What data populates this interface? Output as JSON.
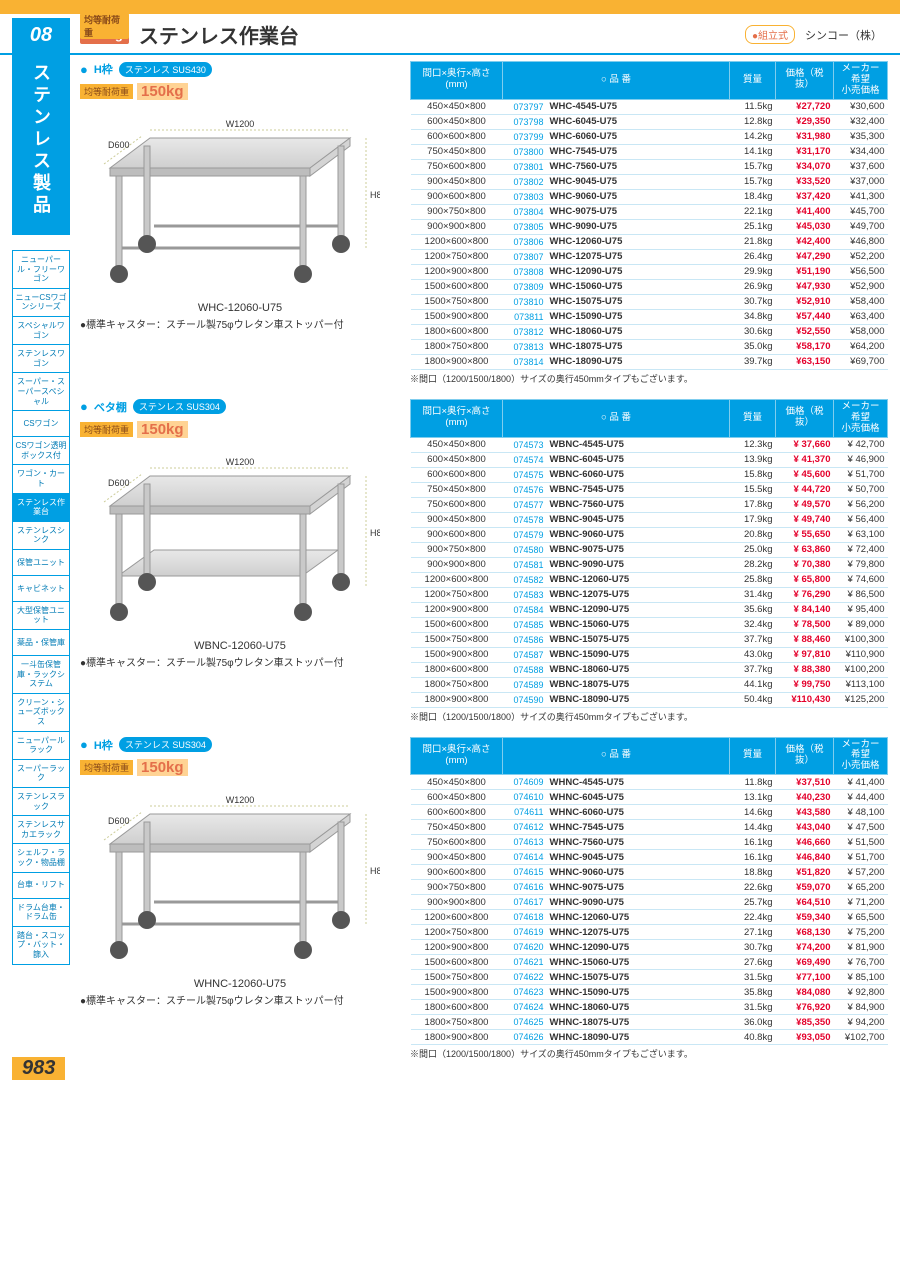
{
  "header": {
    "load_label": "均等耐荷重",
    "load_value": "150kg",
    "title": "ステンレス作業台",
    "assembly_badge": "●組立式",
    "maker": "シンコー（株）"
  },
  "chapter": {
    "num": "08",
    "label": "ステンレス製品"
  },
  "sidebar_items": [
    "ニューパール・フリーワゴン",
    "ニューCSワゴンシリーズ",
    "スペシャルワゴン",
    "ステンレスワゴン",
    "スーパー・スーパースペシャル",
    "CSワゴン",
    "CSワゴン透明ボックス付",
    "ワゴン・カート",
    "ステンレス作業台",
    "ステンレスシンク",
    "保管ユニット",
    "キャビネット",
    "大型保管ユニット",
    "薬品・保管庫",
    "一斗缶保管庫・ラックシステム",
    "クリーン・シューズボックス",
    "ニューパールラック",
    "スーパーラック",
    "ステンレスラック",
    "ステンレスサカエラック",
    "シェルフ・ラック・物品棚",
    "台車・リフト",
    "ドラム台車・ドラム缶",
    "踏台・スコップ・バット・篩入"
  ],
  "sidebar_active_index": 8,
  "table_headers": {
    "dim": "間口×奥行×高さ\n(mm)",
    "model": "○ 品 番",
    "mass": "質量",
    "price": "価格（税抜）",
    "msrp": "メーカー\n希望\n小売価格"
  },
  "caster_note": "●標準キャスター：スチール製75φウレタン車ストッパー付",
  "table_footnote": "※間口（1200/1500/1800）サイズの奥行450mmタイプもございます。",
  "dim_labels": {
    "w": "W1200",
    "d": "D600",
    "h": "H800"
  },
  "sections": [
    {
      "name": "H枠",
      "material": "ステンレス SUS430",
      "load": "150kg",
      "caption": "WHC-12060-U75",
      "shelf": false,
      "rows": [
        {
          "dim": "450×450×800",
          "code": "073797",
          "model": "WHC-4545-U75",
          "mass": "11.5kg",
          "price": "¥27,720",
          "msrp": "¥30,600"
        },
        {
          "dim": "600×450×800",
          "code": "073798",
          "model": "WHC-6045-U75",
          "mass": "12.8kg",
          "price": "¥29,350",
          "msrp": "¥32,400"
        },
        {
          "dim": "600×600×800",
          "code": "073799",
          "model": "WHC-6060-U75",
          "mass": "14.2kg",
          "price": "¥31,980",
          "msrp": "¥35,300"
        },
        {
          "dim": "750×450×800",
          "code": "073800",
          "model": "WHC-7545-U75",
          "mass": "14.1kg",
          "price": "¥31,170",
          "msrp": "¥34,400"
        },
        {
          "dim": "750×600×800",
          "code": "073801",
          "model": "WHC-7560-U75",
          "mass": "15.7kg",
          "price": "¥34,070",
          "msrp": "¥37,600"
        },
        {
          "dim": "900×450×800",
          "code": "073802",
          "model": "WHC-9045-U75",
          "mass": "15.7kg",
          "price": "¥33,520",
          "msrp": "¥37,000"
        },
        {
          "dim": "900×600×800",
          "code": "073803",
          "model": "WHC-9060-U75",
          "mass": "18.4kg",
          "price": "¥37,420",
          "msrp": "¥41,300"
        },
        {
          "dim": "900×750×800",
          "code": "073804",
          "model": "WHC-9075-U75",
          "mass": "22.1kg",
          "price": "¥41,400",
          "msrp": "¥45,700"
        },
        {
          "dim": "900×900×800",
          "code": "073805",
          "model": "WHC-9090-U75",
          "mass": "25.1kg",
          "price": "¥45,030",
          "msrp": "¥49,700"
        },
        {
          "dim": "1200×600×800",
          "code": "073806",
          "model": "WHC-12060-U75",
          "mass": "21.8kg",
          "price": "¥42,400",
          "msrp": "¥46,800"
        },
        {
          "dim": "1200×750×800",
          "code": "073807",
          "model": "WHC-12075-U75",
          "mass": "26.4kg",
          "price": "¥47,290",
          "msrp": "¥52,200"
        },
        {
          "dim": "1200×900×800",
          "code": "073808",
          "model": "WHC-12090-U75",
          "mass": "29.9kg",
          "price": "¥51,190",
          "msrp": "¥56,500"
        },
        {
          "dim": "1500×600×800",
          "code": "073809",
          "model": "WHC-15060-U75",
          "mass": "26.9kg",
          "price": "¥47,930",
          "msrp": "¥52,900"
        },
        {
          "dim": "1500×750×800",
          "code": "073810",
          "model": "WHC-15075-U75",
          "mass": "30.7kg",
          "price": "¥52,910",
          "msrp": "¥58,400"
        },
        {
          "dim": "1500×900×800",
          "code": "073811",
          "model": "WHC-15090-U75",
          "mass": "34.8kg",
          "price": "¥57,440",
          "msrp": "¥63,400"
        },
        {
          "dim": "1800×600×800",
          "code": "073812",
          "model": "WHC-18060-U75",
          "mass": "30.6kg",
          "price": "¥52,550",
          "msrp": "¥58,000"
        },
        {
          "dim": "1800×750×800",
          "code": "073813",
          "model": "WHC-18075-U75",
          "mass": "35.0kg",
          "price": "¥58,170",
          "msrp": "¥64,200"
        },
        {
          "dim": "1800×900×800",
          "code": "073814",
          "model": "WHC-18090-U75",
          "mass": "39.7kg",
          "price": "¥63,150",
          "msrp": "¥69,700"
        }
      ]
    },
    {
      "name": "ベタ棚",
      "material": "ステンレス SUS304",
      "load": "150kg",
      "caption": "WBNC-12060-U75",
      "shelf": true,
      "rows": [
        {
          "dim": "450×450×800",
          "code": "074573",
          "model": "WBNC-4545-U75",
          "mass": "12.3kg",
          "price": "¥ 37,660",
          "msrp": "¥ 42,700"
        },
        {
          "dim": "600×450×800",
          "code": "074574",
          "model": "WBNC-6045-U75",
          "mass": "13.9kg",
          "price": "¥ 41,370",
          "msrp": "¥ 46,900"
        },
        {
          "dim": "600×600×800",
          "code": "074575",
          "model": "WBNC-6060-U75",
          "mass": "15.8kg",
          "price": "¥ 45,600",
          "msrp": "¥ 51,700"
        },
        {
          "dim": "750×450×800",
          "code": "074576",
          "model": "WBNC-7545-U75",
          "mass": "15.5kg",
          "price": "¥ 44,720",
          "msrp": "¥ 50,700"
        },
        {
          "dim": "750×600×800",
          "code": "074577",
          "model": "WBNC-7560-U75",
          "mass": "17.8kg",
          "price": "¥ 49,570",
          "msrp": "¥ 56,200"
        },
        {
          "dim": "900×450×800",
          "code": "074578",
          "model": "WBNC-9045-U75",
          "mass": "17.9kg",
          "price": "¥ 49,740",
          "msrp": "¥ 56,400"
        },
        {
          "dim": "900×600×800",
          "code": "074579",
          "model": "WBNC-9060-U75",
          "mass": "20.8kg",
          "price": "¥ 55,650",
          "msrp": "¥ 63,100"
        },
        {
          "dim": "900×750×800",
          "code": "074580",
          "model": "WBNC-9075-U75",
          "mass": "25.0kg",
          "price": "¥ 63,860",
          "msrp": "¥ 72,400"
        },
        {
          "dim": "900×900×800",
          "code": "074581",
          "model": "WBNC-9090-U75",
          "mass": "28.2kg",
          "price": "¥ 70,380",
          "msrp": "¥ 79,800"
        },
        {
          "dim": "1200×600×800",
          "code": "074582",
          "model": "WBNC-12060-U75",
          "mass": "25.8kg",
          "price": "¥ 65,800",
          "msrp": "¥ 74,600"
        },
        {
          "dim": "1200×750×800",
          "code": "074583",
          "model": "WBNC-12075-U75",
          "mass": "31.4kg",
          "price": "¥ 76,290",
          "msrp": "¥ 86,500"
        },
        {
          "dim": "1200×900×800",
          "code": "074584",
          "model": "WBNC-12090-U75",
          "mass": "35.6kg",
          "price": "¥ 84,140",
          "msrp": "¥ 95,400"
        },
        {
          "dim": "1500×600×800",
          "code": "074585",
          "model": "WBNC-15060-U75",
          "mass": "32.4kg",
          "price": "¥ 78,500",
          "msrp": "¥ 89,000"
        },
        {
          "dim": "1500×750×800",
          "code": "074586",
          "model": "WBNC-15075-U75",
          "mass": "37.7kg",
          "price": "¥ 88,460",
          "msrp": "¥100,300"
        },
        {
          "dim": "1500×900×800",
          "code": "074587",
          "model": "WBNC-15090-U75",
          "mass": "43.0kg",
          "price": "¥ 97,810",
          "msrp": "¥110,900"
        },
        {
          "dim": "1800×600×800",
          "code": "074588",
          "model": "WBNC-18060-U75",
          "mass": "37.7kg",
          "price": "¥ 88,380",
          "msrp": "¥100,200"
        },
        {
          "dim": "1800×750×800",
          "code": "074589",
          "model": "WBNC-18075-U75",
          "mass": "44.1kg",
          "price": "¥ 99,750",
          "msrp": "¥113,100"
        },
        {
          "dim": "1800×900×800",
          "code": "074590",
          "model": "WBNC-18090-U75",
          "mass": "50.4kg",
          "price": "¥110,430",
          "msrp": "¥125,200"
        }
      ]
    },
    {
      "name": "H枠",
      "material": "ステンレス SUS304",
      "load": "150kg",
      "caption": "WHNC-12060-U75",
      "shelf": false,
      "rows": [
        {
          "dim": "450×450×800",
          "code": "074609",
          "model": "WHNC-4545-U75",
          "mass": "11.8kg",
          "price": "¥37,510",
          "msrp": "¥ 41,400"
        },
        {
          "dim": "600×450×800",
          "code": "074610",
          "model": "WHNC-6045-U75",
          "mass": "13.1kg",
          "price": "¥40,230",
          "msrp": "¥ 44,400"
        },
        {
          "dim": "600×600×800",
          "code": "074611",
          "model": "WHNC-6060-U75",
          "mass": "14.6kg",
          "price": "¥43,580",
          "msrp": "¥ 48,100"
        },
        {
          "dim": "750×450×800",
          "code": "074612",
          "model": "WHNC-7545-U75",
          "mass": "14.4kg",
          "price": "¥43,040",
          "msrp": "¥ 47,500"
        },
        {
          "dim": "750×600×800",
          "code": "074613",
          "model": "WHNC-7560-U75",
          "mass": "16.1kg",
          "price": "¥46,660",
          "msrp": "¥ 51,500"
        },
        {
          "dim": "900×450×800",
          "code": "074614",
          "model": "WHNC-9045-U75",
          "mass": "16.1kg",
          "price": "¥46,840",
          "msrp": "¥ 51,700"
        },
        {
          "dim": "900×600×800",
          "code": "074615",
          "model": "WHNC-9060-U75",
          "mass": "18.8kg",
          "price": "¥51,820",
          "msrp": "¥ 57,200"
        },
        {
          "dim": "900×750×800",
          "code": "074616",
          "model": "WHNC-9075-U75",
          "mass": "22.6kg",
          "price": "¥59,070",
          "msrp": "¥ 65,200"
        },
        {
          "dim": "900×900×800",
          "code": "074617",
          "model": "WHNC-9090-U75",
          "mass": "25.7kg",
          "price": "¥64,510",
          "msrp": "¥ 71,200"
        },
        {
          "dim": "1200×600×800",
          "code": "074618",
          "model": "WHNC-12060-U75",
          "mass": "22.4kg",
          "price": "¥59,340",
          "msrp": "¥ 65,500"
        },
        {
          "dim": "1200×750×800",
          "code": "074619",
          "model": "WHNC-12075-U75",
          "mass": "27.1kg",
          "price": "¥68,130",
          "msrp": "¥ 75,200"
        },
        {
          "dim": "1200×900×800",
          "code": "074620",
          "model": "WHNC-12090-U75",
          "mass": "30.7kg",
          "price": "¥74,200",
          "msrp": "¥ 81,900"
        },
        {
          "dim": "1500×600×800",
          "code": "074621",
          "model": "WHNC-15060-U75",
          "mass": "27.6kg",
          "price": "¥69,490",
          "msrp": "¥ 76,700"
        },
        {
          "dim": "1500×750×800",
          "code": "074622",
          "model": "WHNC-15075-U75",
          "mass": "31.5kg",
          "price": "¥77,100",
          "msrp": "¥ 85,100"
        },
        {
          "dim": "1500×900×800",
          "code": "074623",
          "model": "WHNC-15090-U75",
          "mass": "35.8kg",
          "price": "¥84,080",
          "msrp": "¥ 92,800"
        },
        {
          "dim": "1800×600×800",
          "code": "074624",
          "model": "WHNC-18060-U75",
          "mass": "31.5kg",
          "price": "¥76,920",
          "msrp": "¥ 84,900"
        },
        {
          "dim": "1800×750×800",
          "code": "074625",
          "model": "WHNC-18075-U75",
          "mass": "36.0kg",
          "price": "¥85,350",
          "msrp": "¥ 94,200"
        },
        {
          "dim": "1800×900×800",
          "code": "074626",
          "model": "WHNC-18090-U75",
          "mass": "40.8kg",
          "price": "¥93,050",
          "msrp": "¥102,700"
        }
      ]
    }
  ],
  "page_number": "983"
}
